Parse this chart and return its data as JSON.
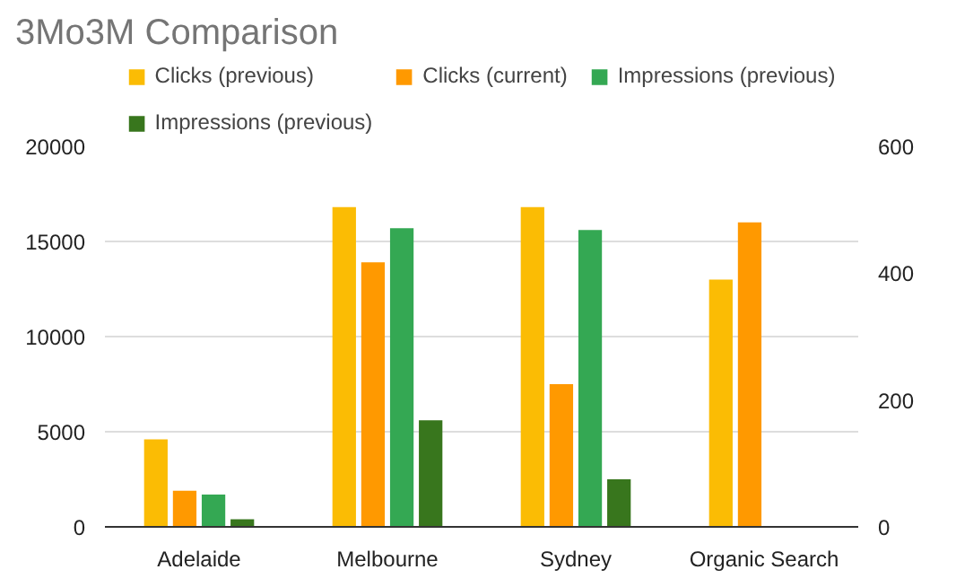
{
  "chart_data": {
    "type": "bar",
    "title": "3Mo3M Comparison",
    "categories": [
      "Adelaide",
      "Melbourne",
      "Sydney",
      "Organic Search"
    ],
    "series": [
      {
        "name": "Clicks (previous)",
        "color": "#fbbc04",
        "values": [
          4600,
          16800,
          16800,
          13000
        ]
      },
      {
        "name": "Clicks (current)",
        "color": "#ff9900",
        "values": [
          1900,
          13900,
          7500,
          16000
        ]
      },
      {
        "name": "Impressions (previous)",
        "color": "#34a853",
        "values": [
          1700,
          15700,
          15600,
          null
        ]
      },
      {
        "name": "Impressions (previous)",
        "color": "#38761d",
        "values": [
          400,
          5600,
          2500,
          null
        ]
      }
    ],
    "ylim": [
      0,
      20000
    ],
    "yticks": [
      0,
      5000,
      10000,
      15000,
      20000
    ],
    "y2lim": [
      0,
      600
    ],
    "y2ticks": [
      0,
      200,
      400,
      600
    ],
    "grid": "y",
    "legend": "top"
  }
}
